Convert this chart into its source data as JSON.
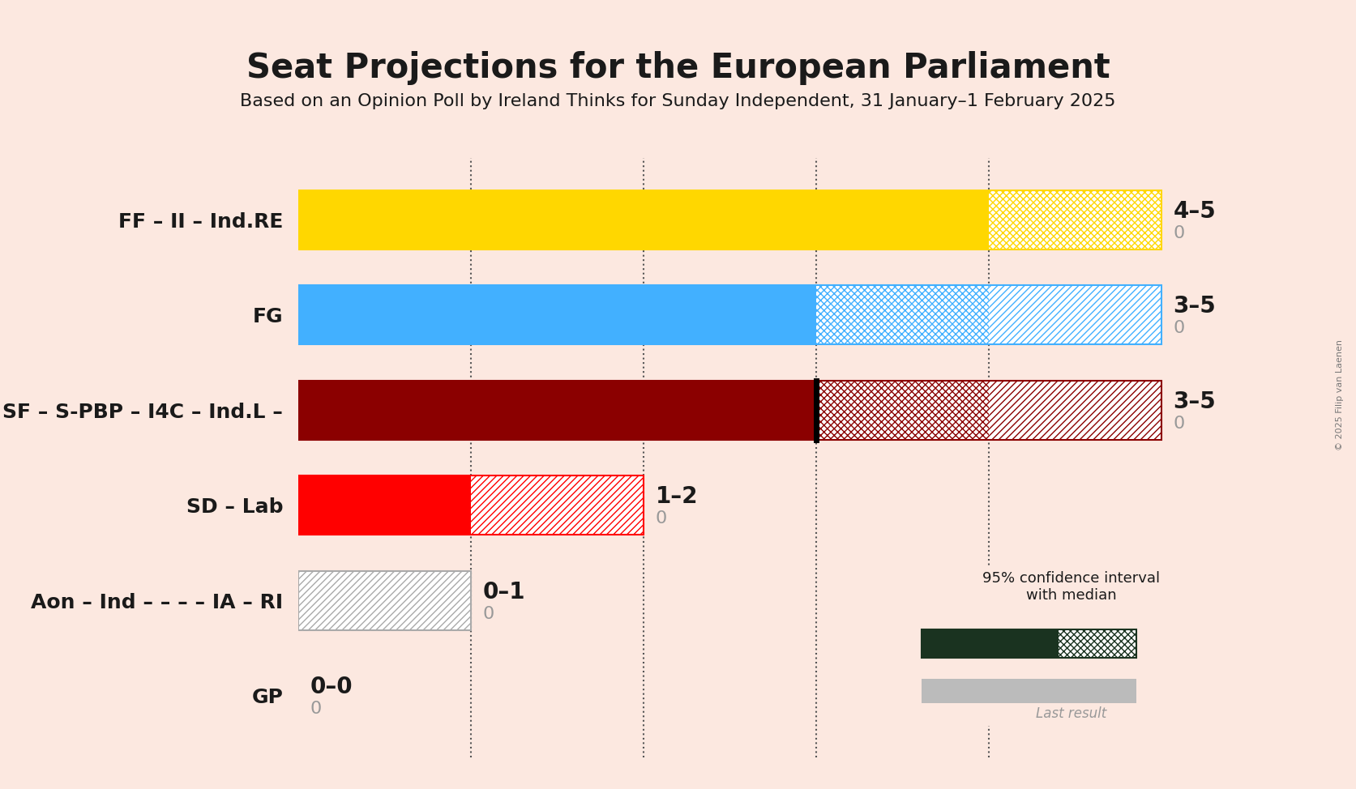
{
  "title": "Seat Projections for the European Parliament",
  "subtitle": "Based on an Opinion Poll by Ireland Thinks for Sunday Independent, 31 January–1 February 2025",
  "copyright": "© 2025 Filip van Laenen",
  "background_color": "#fce8e0",
  "parties": [
    {
      "label": "FF – II – Ind.RE",
      "median": 4,
      "low": 4,
      "high": 5,
      "last": 0,
      "solid_color": "#FFD700",
      "type": "ff"
    },
    {
      "label": "FG",
      "median": 3,
      "low": 3,
      "high": 5,
      "last": 0,
      "solid_color": "#42b0ff",
      "type": "fg"
    },
    {
      "label": "SF – S-PBP – I4C – Ind.L –",
      "median": 3,
      "low": 3,
      "high": 5,
      "last": 0,
      "solid_color": "#8B0000",
      "type": "sf"
    },
    {
      "label": "SD – Lab",
      "median": 1,
      "low": 1,
      "high": 2,
      "last": 0,
      "solid_color": "#FF0000",
      "type": "sd"
    },
    {
      "label": "Aon – Ind – – – – IA – RI",
      "median": 0,
      "low": 0,
      "high": 1,
      "last": 0,
      "solid_color": "#AAAAAA",
      "type": "aon"
    },
    {
      "label": "GP",
      "median": 0,
      "low": 0,
      "high": 0,
      "last": 0,
      "solid_color": "#228B22",
      "type": "gp"
    }
  ],
  "xlim_max": 5.0,
  "dotted_lines": [
    1,
    2,
    3,
    4
  ],
  "bar_height": 0.62
}
